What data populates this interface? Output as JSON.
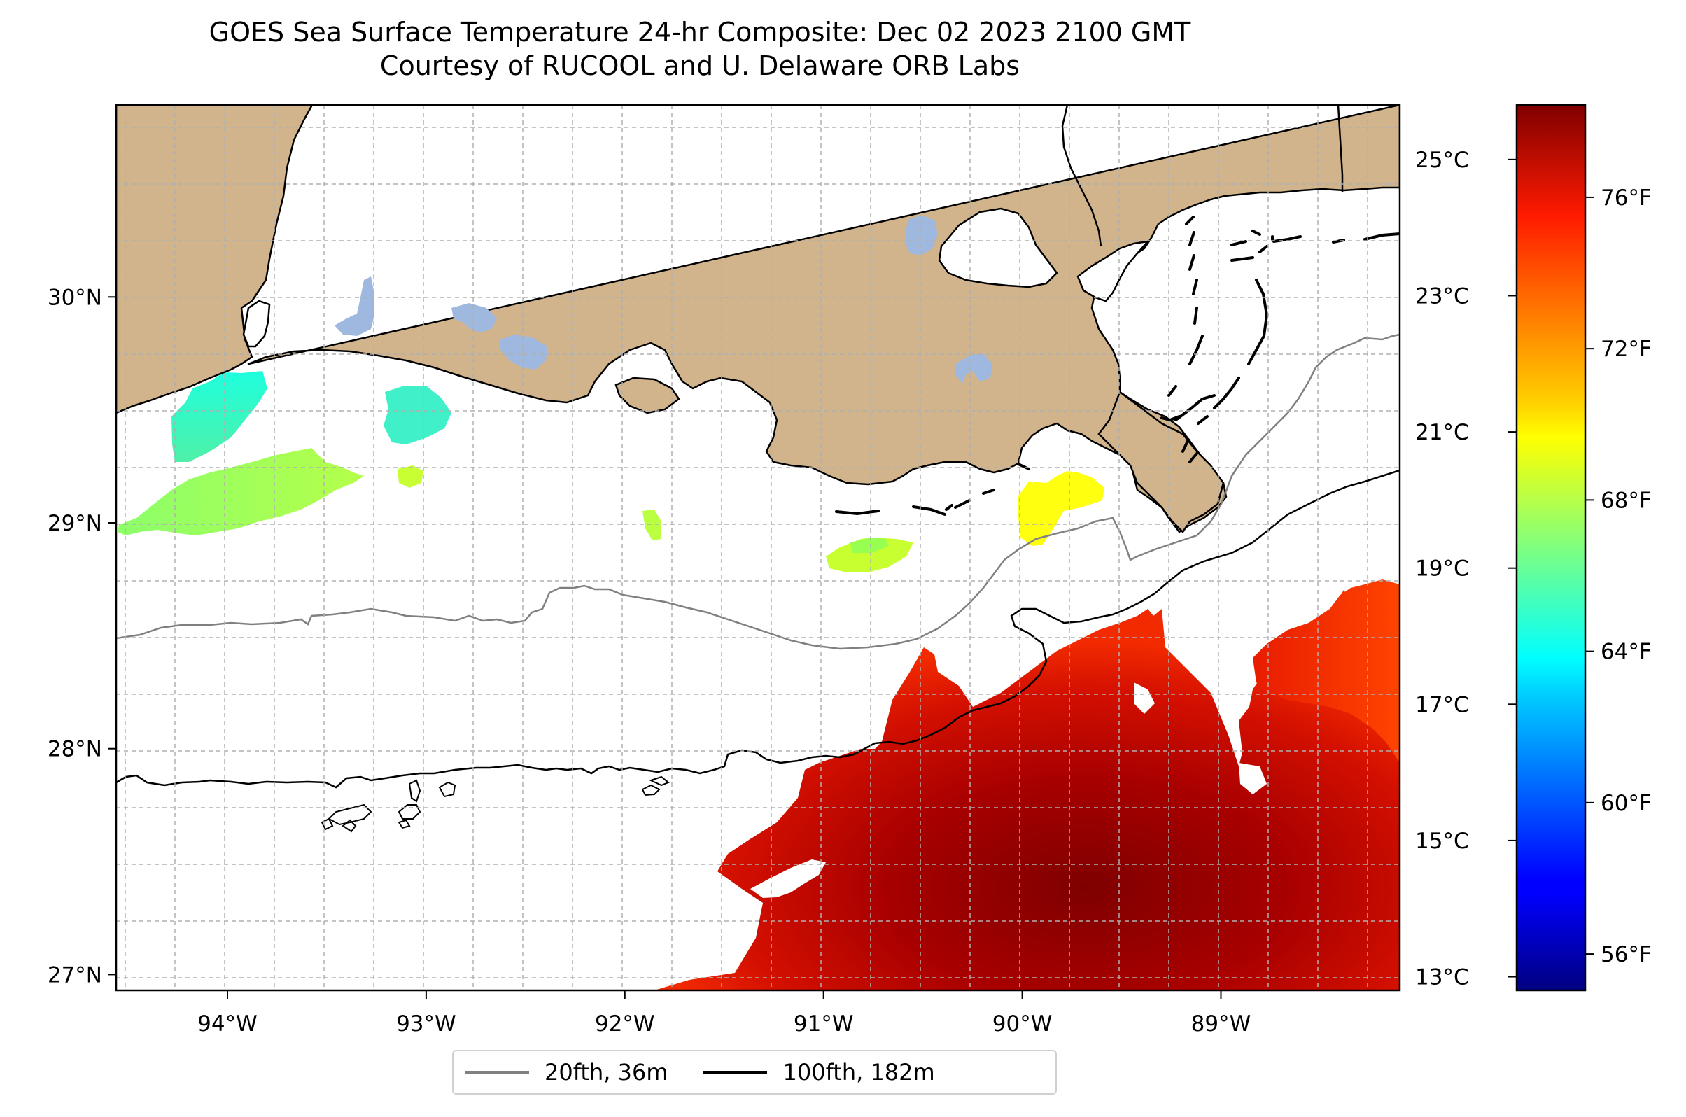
{
  "title": {
    "line1": "GOES Sea Surface Temperature 24-hr Composite: Dec 02 2023 2100 GMT",
    "line2": "Courtesy of RUCOOL and U. Delaware ORB Labs"
  },
  "map": {
    "lon_range": [
      -94.56,
      -88.1
    ],
    "lat_range": [
      26.93,
      30.85
    ],
    "lon_ticks": [
      {
        "value": -94,
        "label": "94°W"
      },
      {
        "value": -93,
        "label": "93°W"
      },
      {
        "value": -92,
        "label": "92°W"
      },
      {
        "value": -91,
        "label": "91°W"
      },
      {
        "value": -90,
        "label": "90°W"
      },
      {
        "value": -89,
        "label": "89°W"
      }
    ],
    "lat_ticks": [
      {
        "value": 27,
        "label": "27°N"
      },
      {
        "value": 28,
        "label": "28°N"
      },
      {
        "value": 29,
        "label": "29°N"
      },
      {
        "value": 30,
        "label": "30°N"
      }
    ],
    "grid": true,
    "colors": {
      "land": "#d2b48c",
      "lakes": "#9fb8df",
      "contour_20fth": "#808080",
      "contour_100fth": "#000000"
    }
  },
  "colorbar": {
    "cmap": "jet",
    "celsius_range": [
      12.8,
      25.8
    ],
    "celsius_ticks": [
      {
        "value": 13,
        "label": "13°C"
      },
      {
        "value": 15,
        "label": "15°C"
      },
      {
        "value": 17,
        "label": "17°C"
      },
      {
        "value": 19,
        "label": "19°C"
      },
      {
        "value": 21,
        "label": "21°C"
      },
      {
        "value": 23,
        "label": "23°C"
      },
      {
        "value": 25,
        "label": "25°C"
      }
    ],
    "fahrenheit_ticks": [
      {
        "value": 56,
        "label": "56°F"
      },
      {
        "value": 60,
        "label": "60°F"
      },
      {
        "value": 64,
        "label": "64°F"
      },
      {
        "value": 68,
        "label": "68°F"
      },
      {
        "value": 72,
        "label": "72°F"
      },
      {
        "value": 76,
        "label": "76°F"
      }
    ]
  },
  "legend": {
    "entries": [
      {
        "label": "20fth, 36m",
        "color": "#808080"
      },
      {
        "label": "100fth, 182m",
        "color": "#000000"
      }
    ]
  }
}
